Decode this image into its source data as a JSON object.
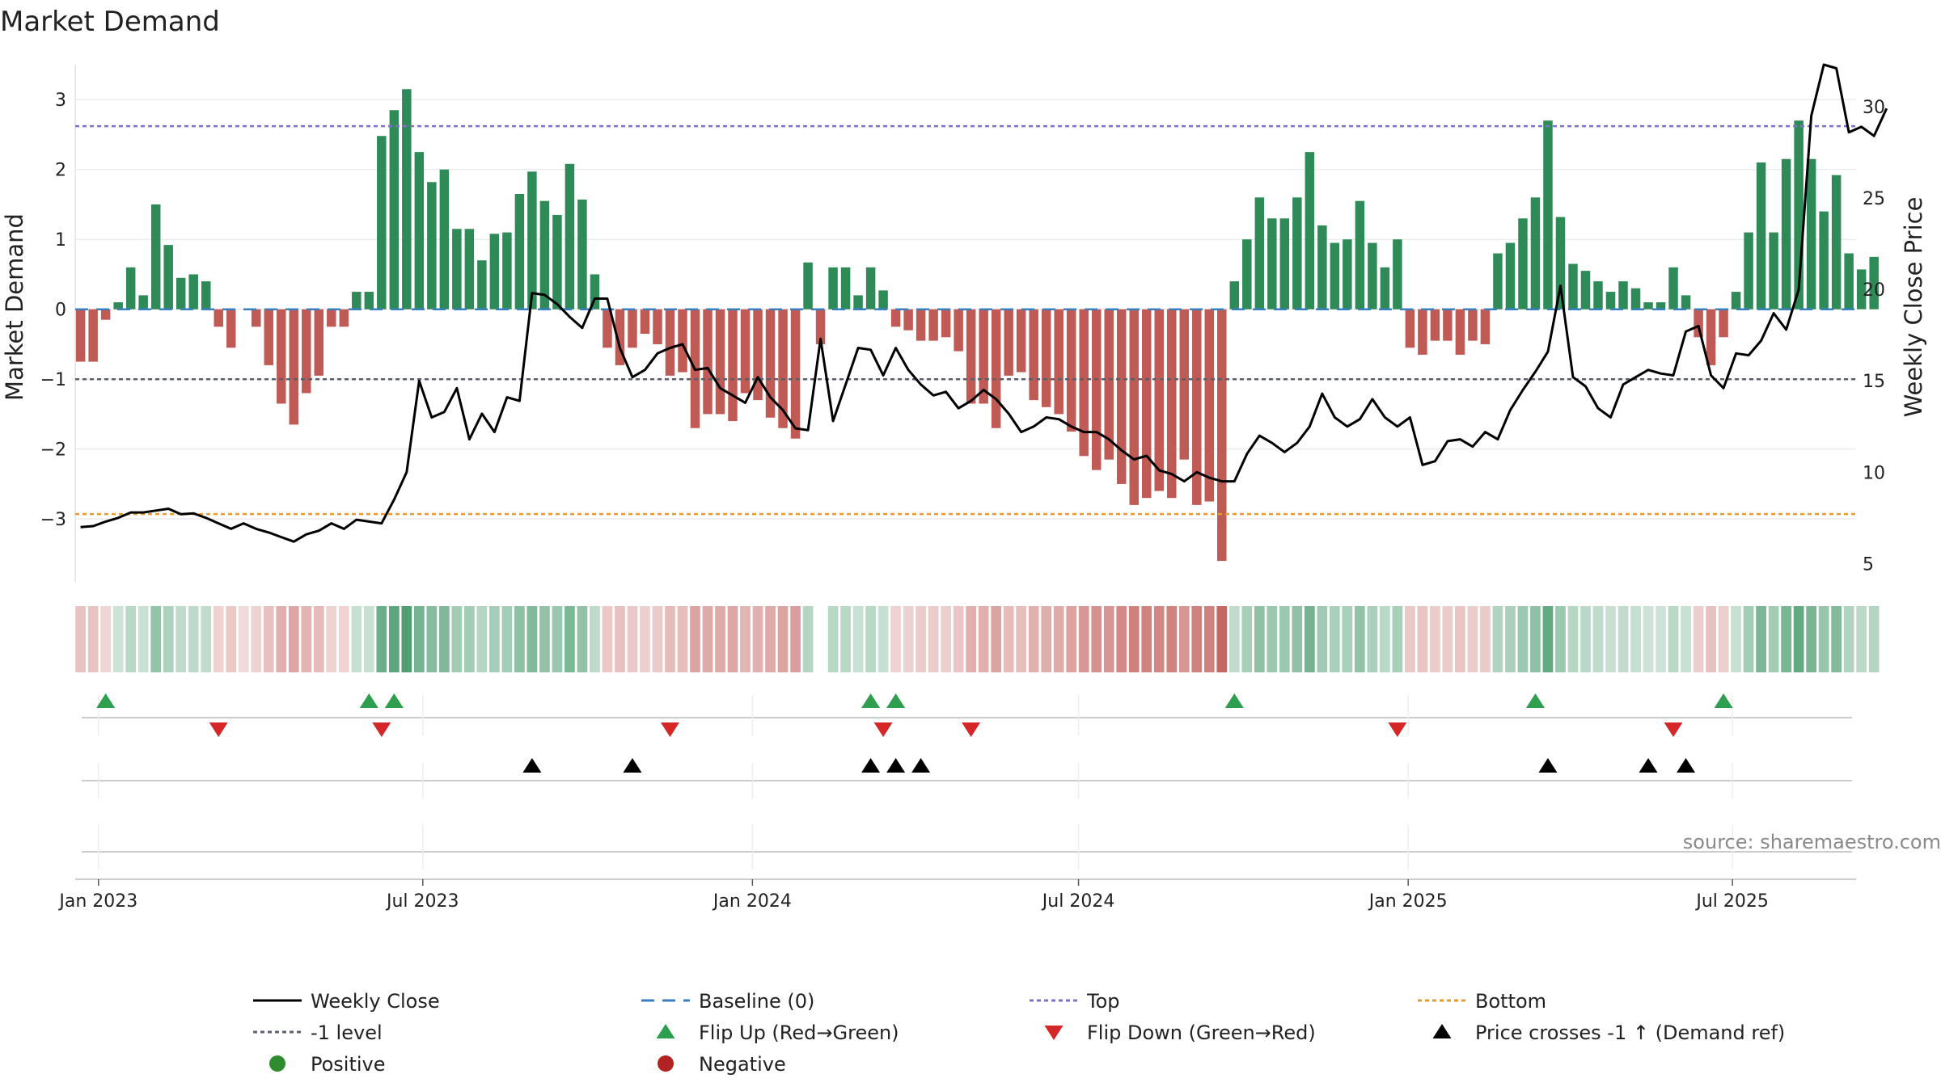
{
  "chart_data": {
    "type": "bar",
    "title": "Market Demand",
    "ylabel_left": "Market Demand",
    "ylabel_right": "Weekly Close Price",
    "ylim_left": [
      -3.9,
      3.5
    ],
    "ylim_right": [
      4,
      32.3
    ],
    "yticks_left": [
      3,
      2,
      1,
      0,
      -1,
      -2,
      -3
    ],
    "ytick_labels_left": [
      "3",
      "2",
      "1",
      "0",
      "−1",
      "−2",
      "−3"
    ],
    "yticks_right": [
      30,
      25,
      20,
      15,
      10,
      5
    ],
    "ytick_labels_right": [
      "30",
      "25",
      "20",
      "15",
      "10",
      "5"
    ],
    "x_start": "2022-12-19",
    "x_end": "2025-09-08",
    "week_start": "2022-12-22",
    "xticks": [
      {
        "date": "2023-01-01",
        "label": "Jan 2023"
      },
      {
        "date": "2023-07-01",
        "label": "Jul 2023"
      },
      {
        "date": "2024-01-01",
        "label": "Jan 2024"
      },
      {
        "date": "2024-07-01",
        "label": "Jul 2024"
      },
      {
        "date": "2025-01-01",
        "label": "Jan 2025"
      },
      {
        "date": "2025-07-01",
        "label": "Jul 2025"
      }
    ],
    "reference_lines": [
      {
        "name": "Top",
        "value": 2.62,
        "color": "#7b73c8"
      },
      {
        "name": "-1 level",
        "value": -1,
        "color": "#5a5f6b"
      },
      {
        "name": "Bottom",
        "value": -2.93,
        "color": "#e89b2c"
      },
      {
        "name": "Baseline (0)",
        "value": 0,
        "color": "#3a7fc1"
      }
    ],
    "demand_values": [
      -0.75,
      -0.75,
      -0.15,
      0.1,
      0.6,
      0.2,
      1.5,
      0.92,
      0.45,
      0.5,
      0.4,
      -0.25,
      -0.55,
      0.0,
      -0.25,
      -0.8,
      -1.35,
      -1.65,
      -1.2,
      -0.95,
      -0.25,
      -0.25,
      0.25,
      0.25,
      2.48,
      2.85,
      3.15,
      2.25,
      1.82,
      2.0,
      1.15,
      1.15,
      0.7,
      1.08,
      1.1,
      1.65,
      1.97,
      1.55,
      1.35,
      2.08,
      1.57,
      0.5,
      -0.55,
      -0.8,
      -0.55,
      -0.35,
      -0.5,
      -0.95,
      -0.9,
      -1.7,
      -1.5,
      -1.5,
      -1.6,
      -1.2,
      -1.3,
      -1.55,
      -1.7,
      -1.85,
      0.67,
      -0.5,
      0.6,
      0.6,
      0.2,
      0.6,
      0.27,
      -0.25,
      -0.3,
      -0.45,
      -0.45,
      -0.4,
      -0.6,
      -1.35,
      -1.35,
      -1.7,
      -0.95,
      -0.9,
      -1.3,
      -1.4,
      -1.5,
      -1.75,
      -2.1,
      -2.3,
      -2.15,
      -2.5,
      -2.8,
      -2.7,
      -2.6,
      -2.7,
      -2.15,
      -2.8,
      -2.75,
      -3.6,
      0.4,
      1.0,
      1.6,
      1.3,
      1.3,
      1.6,
      2.25,
      1.2,
      0.95,
      1.0,
      1.55,
      0.95,
      0.6,
      1.0,
      -0.55,
      -0.65,
      -0.45,
      -0.45,
      -0.65,
      -0.45,
      -0.5,
      0.8,
      0.95,
      1.3,
      1.6,
      2.7,
      1.32,
      0.65,
      0.55,
      0.4,
      0.25,
      0.4,
      0.3,
      0.1,
      0.1,
      0.6,
      0.2,
      -0.4,
      -0.8,
      -0.4,
      0.25,
      1.1,
      2.1,
      1.1,
      2.15,
      2.7,
      2.15,
      1.4,
      1.92,
      0.8,
      0.57,
      0.75
    ],
    "weekly_close": [
      7.0,
      7.05,
      7.3,
      7.5,
      7.8,
      7.8,
      7.9,
      8.0,
      7.7,
      7.75,
      7.5,
      7.2,
      6.9,
      7.2,
      6.9,
      6.7,
      6.45,
      6.2,
      6.6,
      6.8,
      7.2,
      6.9,
      7.4,
      7.3,
      7.2,
      8.5,
      10.0,
      15.0,
      13.0,
      13.3,
      14.6,
      11.8,
      13.2,
      12.2,
      14.1,
      13.9,
      19.8,
      19.7,
      19.2,
      18.5,
      17.9,
      19.5,
      19.5,
      16.8,
      15.2,
      15.6,
      16.5,
      16.8,
      17.0,
      15.6,
      15.7,
      14.6,
      14.2,
      13.8,
      15.2,
      14.1,
      13.4,
      12.4,
      12.3,
      17.3,
      12.8,
      14.8,
      16.8,
      16.7,
      15.3,
      16.8,
      15.6,
      14.8,
      14.2,
      14.4,
      13.5,
      13.9,
      14.5,
      14.0,
      13.2,
      12.2,
      12.5,
      13.0,
      12.9,
      12.5,
      12.2,
      12.2,
      11.8,
      11.2,
      10.7,
      10.9,
      10.1,
      9.9,
      9.5,
      10.0,
      9.7,
      9.5,
      9.5,
      11.0,
      12.0,
      11.6,
      11.1,
      11.6,
      12.5,
      14.3,
      13.0,
      12.5,
      12.9,
      14.0,
      13.0,
      12.5,
      13.0,
      10.4,
      10.6,
      11.7,
      11.8,
      11.4,
      12.2,
      11.8,
      13.4,
      14.5,
      15.5,
      16.6,
      20.2,
      15.2,
      14.7,
      13.5,
      13.0,
      14.8,
      15.2,
      15.6,
      15.4,
      15.3,
      17.7,
      18.0,
      15.3,
      14.6,
      16.5,
      16.4,
      17.2,
      18.7,
      17.8,
      20.0,
      29.5,
      32.3,
      32.1,
      28.6,
      28.9,
      28.4,
      29.9
    ],
    "heat_strip": {
      "missing_index": 59,
      "positive_color": "#2e8b57",
      "negative_color": "#c05a55"
    },
    "flip_up_dates": [
      "2023-01-05",
      "2023-06-01",
      "2023-06-15",
      "2024-03-07",
      "2024-03-21",
      "2024-09-26",
      "2025-03-13",
      "2025-06-26"
    ],
    "flip_down_dates": [
      "2023-03-09",
      "2023-06-08",
      "2023-11-16",
      "2024-03-14",
      "2024-05-02",
      "2024-12-26",
      "2025-05-29"
    ],
    "price_cross_dates": [
      "2023-08-31",
      "2023-10-26",
      "2024-03-07",
      "2024-03-21",
      "2024-04-04",
      "2025-03-20",
      "2025-05-15",
      "2025-06-05"
    ],
    "legend": [
      {
        "label": "Weekly Close",
        "marker": "line",
        "color": "#000000"
      },
      {
        "label": "Baseline (0)",
        "marker": "dash",
        "color": "#3a7fc1"
      },
      {
        "label": "Top",
        "marker": "dot",
        "color": "#7b73c8"
      },
      {
        "label": "Bottom",
        "marker": "dot",
        "color": "#e89b2c"
      },
      {
        "label": "-1 level",
        "marker": "dot",
        "color": "#5a5f6b"
      },
      {
        "label": "Flip Up (Red→Green)",
        "marker": "tri-up",
        "color": "#2e9e4f"
      },
      {
        "label": "Flip Down (Green→Red)",
        "marker": "tri-down",
        "color": "#d62728"
      },
      {
        "label": "Price crosses -1 ↑ (Demand ref)",
        "marker": "tri-up",
        "color": "#000000"
      },
      {
        "label": "Positive",
        "marker": "circle",
        "color": "#2e8b2e"
      },
      {
        "label": "Negative",
        "marker": "circle",
        "color": "#b22222"
      }
    ],
    "source": "source: sharemaestro.com"
  }
}
